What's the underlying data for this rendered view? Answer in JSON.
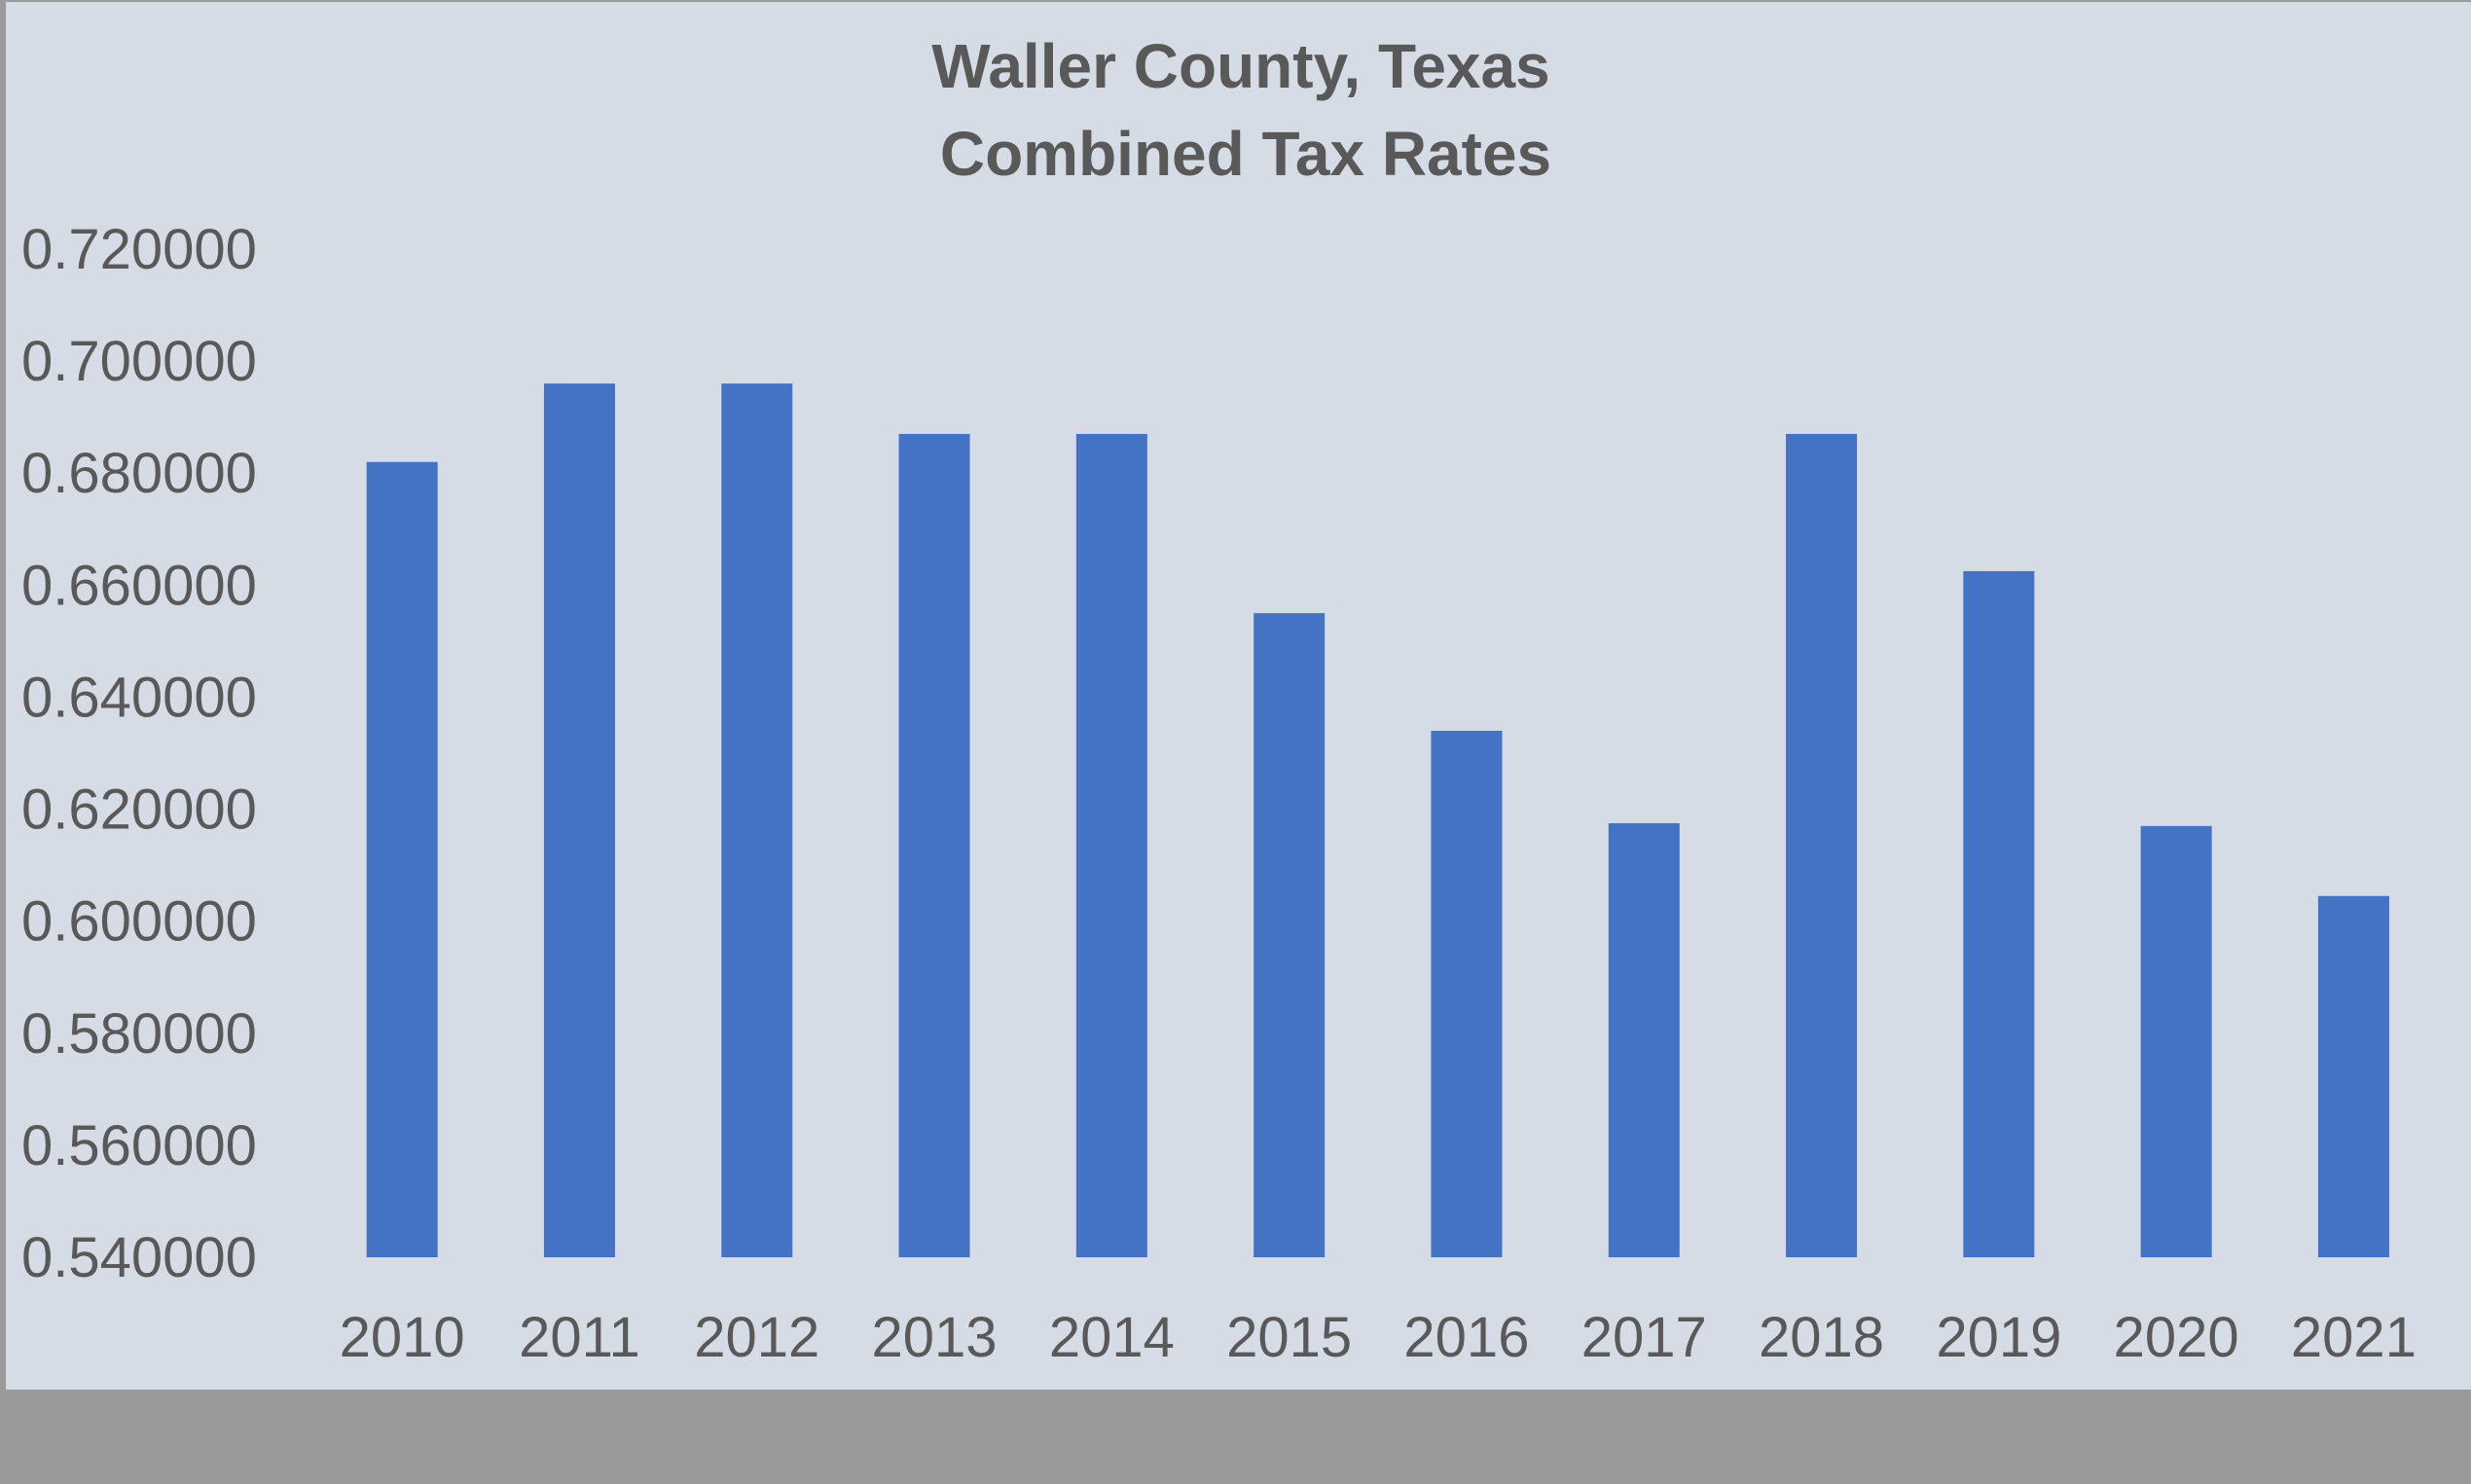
{
  "chart_data": {
    "type": "bar",
    "title_lines": [
      "Waller County, Texas",
      "Combined Tax Rates"
    ],
    "categories": [
      "2010",
      "2011",
      "2012",
      "2013",
      "2014",
      "2015",
      "2016",
      "2017",
      "2018",
      "2019",
      "2020",
      "2021"
    ],
    "values": [
      0.682,
      0.696,
      0.696,
      0.687,
      0.687,
      0.655,
      0.634,
      0.6175,
      0.687,
      0.6625,
      0.617,
      0.6045
    ],
    "y_ticks": [
      "0.720000",
      "0.700000",
      "0.680000",
      "0.660000",
      "0.640000",
      "0.620000",
      "0.600000",
      "0.580000",
      "0.560000",
      "0.540000"
    ],
    "ylim": [
      0.54,
      0.72
    ],
    "xlabel": "",
    "ylabel": "",
    "grid": false,
    "legend": "none",
    "colors": {
      "bar": "#4472c4",
      "plot_background": "#d6dce5",
      "bottom_band": "#9a9a9a",
      "text": "#595959"
    }
  }
}
